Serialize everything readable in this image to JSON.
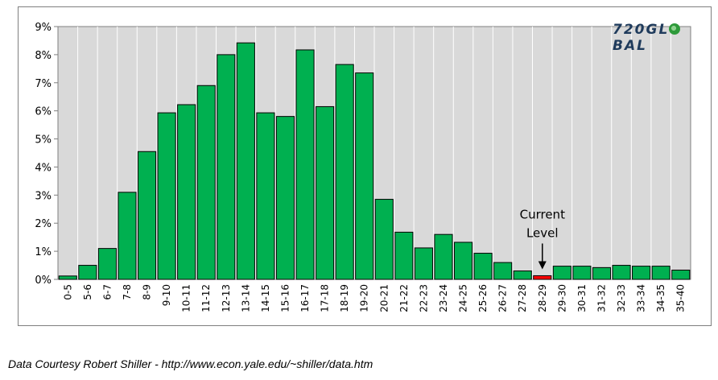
{
  "brand": {
    "logo_before": "720GL",
    "logo_after": "BAL",
    "logo_icon": "globe-icon",
    "logo_color": "#1f3b5c",
    "globe_color": "#2e9a3a"
  },
  "footer": {
    "text": "Data Courtesy Robert Shiller - http://www.econ.yale.edu/~shiller/data.htm"
  },
  "chart_data": {
    "type": "bar",
    "title": "",
    "xlabel": "",
    "ylabel": "",
    "ylim": [
      0,
      9
    ],
    "y_ticks": [
      "0%",
      "1%",
      "2%",
      "3%",
      "4%",
      "5%",
      "6%",
      "7%",
      "8%",
      "9%"
    ],
    "grid": "vertical",
    "background": "#d9d9d9",
    "bar_color": "#00b050",
    "highlight_color": "#ff0000",
    "categories": [
      "0-5",
      "5-6",
      "6-7",
      "7-8",
      "8-9",
      "9-10",
      "10-11",
      "11-12",
      "12-13",
      "13-14",
      "14-15",
      "15-16",
      "16-17",
      "17-18",
      "18-19",
      "19-20",
      "20-21",
      "21-22",
      "22-23",
      "23-24",
      "24-25",
      "25-26",
      "26-27",
      "27-28",
      "28-29",
      "29-30",
      "30-31",
      "31-32",
      "32-33",
      "33-34",
      "34-35",
      "35-40"
    ],
    "values": [
      0.12,
      0.5,
      1.1,
      3.1,
      4.55,
      5.93,
      6.22,
      6.9,
      8.0,
      8.42,
      5.93,
      5.8,
      8.17,
      6.15,
      7.65,
      7.35,
      2.85,
      1.68,
      1.12,
      1.6,
      1.32,
      0.93,
      0.6,
      0.3,
      0.13,
      0.47,
      0.47,
      0.42,
      0.5,
      0.47,
      0.47,
      0.33
    ],
    "highlight_index": 24,
    "annotation": {
      "lines": [
        "Current",
        "Level"
      ],
      "target": "28-29"
    }
  }
}
